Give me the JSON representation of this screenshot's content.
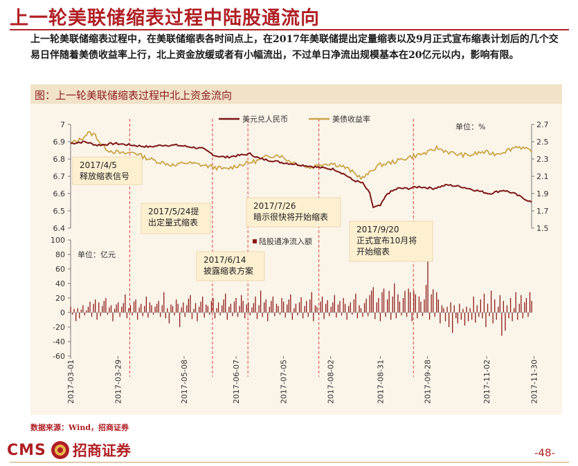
{
  "page": {
    "title": "上一轮美联储缩表过程中陆股通流向",
    "intro": "上一轮美联储缩表过程中，在美联储缩表各时间点上，在2017年美联储提出定量缩表以及9月正式宣布缩表计划后的几个交易日伴随着美债收益率上行，北上资金放缓或者有小幅流出，不过单日净流出规模基本在20亿元以内，影响有限。",
    "chart_title": "图：上一轮美联储缩表过程中北上资金流向",
    "source": "数据来源：Wind，招商证券",
    "logo_cms": "CMS",
    "logo_name": "招商证券",
    "page_number": "-48-"
  },
  "colors": {
    "brand_red": "#b01f24",
    "usdcny": "#7b1416",
    "yield": "#c9a54a",
    "flow": "#8b1a1a",
    "event_line": "#e03a3a",
    "annotation_bg": "#fdf0d0"
  },
  "chart_data": {
    "top_panel": {
      "type": "line",
      "unit_label": "单位：%",
      "left_axis": {
        "min": 6.4,
        "max": 7.0,
        "ticks": [
          "6.4",
          "6.5",
          "6.6",
          "6.7",
          "6.8",
          "6.9",
          "7"
        ]
      },
      "right_axis": {
        "min": 1.5,
        "max": 2.7,
        "ticks": [
          "1.5",
          "1.7",
          "1.9",
          "2.1",
          "2.3",
          "2.5",
          "2.7"
        ]
      },
      "series": [
        {
          "name": "美元兑人民币",
          "axis": "left",
          "keypoints": [
            [
              0,
              6.89
            ],
            [
              8,
              6.9
            ],
            [
              15,
              6.88
            ],
            [
              25,
              6.89
            ],
            [
              35,
              6.88
            ],
            [
              45,
              6.87
            ],
            [
              52,
              6.88
            ],
            [
              60,
              6.88
            ],
            [
              68,
              6.87
            ],
            [
              75,
              6.86
            ],
            [
              82,
              6.82
            ],
            [
              88,
              6.81
            ],
            [
              95,
              6.82
            ],
            [
              102,
              6.83
            ],
            [
              108,
              6.8
            ],
            [
              115,
              6.79
            ],
            [
              120,
              6.78
            ],
            [
              128,
              6.77
            ],
            [
              135,
              6.76
            ],
            [
              142,
              6.75
            ],
            [
              150,
              6.74
            ],
            [
              156,
              6.71
            ],
            [
              160,
              6.68
            ],
            [
              166,
              6.66
            ],
            [
              170,
              6.6
            ],
            [
              172,
              6.52
            ],
            [
              176,
              6.53
            ],
            [
              180,
              6.6
            ],
            [
              186,
              6.63
            ],
            [
              192,
              6.63
            ],
            [
              198,
              6.64
            ],
            [
              206,
              6.63
            ],
            [
              214,
              6.65
            ],
            [
              222,
              6.64
            ],
            [
              230,
              6.62
            ],
            [
              238,
              6.6
            ],
            [
              246,
              6.62
            ],
            [
              252,
              6.6
            ],
            [
              258,
              6.57
            ],
            [
              262,
              6.55
            ]
          ]
        },
        {
          "name": "美债收益率",
          "axis": "right",
          "keypoints": [
            [
              0,
              2.48
            ],
            [
              5,
              2.52
            ],
            [
              10,
              2.6
            ],
            [
              14,
              2.58
            ],
            [
              18,
              2.45
            ],
            [
              22,
              2.4
            ],
            [
              30,
              2.36
            ],
            [
              36,
              2.38
            ],
            [
              42,
              2.32
            ],
            [
              48,
              2.28
            ],
            [
              54,
              2.25
            ],
            [
              60,
              2.22
            ],
            [
              64,
              2.26
            ],
            [
              72,
              2.24
            ],
            [
              80,
              2.21
            ],
            [
              88,
              2.18
            ],
            [
              94,
              2.22
            ],
            [
              100,
              2.25
            ],
            [
              106,
              2.28
            ],
            [
              112,
              2.33
            ],
            [
              118,
              2.35
            ],
            [
              124,
              2.28
            ],
            [
              130,
              2.24
            ],
            [
              136,
              2.2
            ],
            [
              142,
              2.24
            ],
            [
              148,
              2.25
            ],
            [
              154,
              2.22
            ],
            [
              158,
              2.18
            ],
            [
              162,
              2.12
            ],
            [
              166,
              2.08
            ],
            [
              170,
              2.14
            ],
            [
              174,
              2.22
            ],
            [
              180,
              2.25
            ],
            [
              186,
              2.28
            ],
            [
              192,
              2.32
            ],
            [
              198,
              2.35
            ],
            [
              204,
              2.38
            ],
            [
              208,
              2.43
            ],
            [
              212,
              2.4
            ],
            [
              218,
              2.36
            ],
            [
              226,
              2.34
            ],
            [
              234,
              2.38
            ],
            [
              242,
              2.36
            ],
            [
              248,
              2.4
            ],
            [
              254,
              2.45
            ],
            [
              258,
              2.42
            ],
            [
              262,
              2.38
            ]
          ]
        }
      ]
    },
    "bottom_panel": {
      "type": "bar",
      "unit_label": "单位：亿元",
      "series_name": "陆股通净流入额",
      "y_axis": {
        "min": -60,
        "max": 100,
        "ticks": [
          "-60",
          "-40",
          "-20",
          "0",
          "20",
          "40",
          "60",
          "80",
          "100"
        ]
      },
      "values": [
        8,
        -3,
        5,
        -12,
        6,
        -8,
        4,
        10,
        -4,
        3,
        8,
        15,
        -6,
        12,
        18,
        -10,
        14,
        -5,
        9,
        16,
        20,
        -3,
        7,
        10,
        -12,
        5,
        11,
        14,
        -6,
        8,
        13,
        25,
        -8,
        6,
        10,
        -4,
        15,
        18,
        -10,
        7,
        12,
        -5,
        9,
        22,
        -7,
        14,
        10,
        -3,
        8,
        12,
        16,
        -6,
        10,
        28,
        -8,
        6,
        -15,
        11,
        9,
        -4,
        18,
        12,
        -20,
        7,
        14,
        -6,
        10,
        19,
        24,
        -9,
        5,
        13,
        -12,
        8,
        15,
        22,
        -7,
        11,
        9,
        -3,
        16,
        20,
        -8,
        6,
        14,
        -4,
        10,
        18,
        26,
        -10,
        8,
        12,
        -5,
        15,
        20,
        -6,
        9,
        24,
        16,
        -8,
        11,
        14,
        -4,
        7,
        13,
        22,
        -9,
        10,
        30,
        -6,
        14,
        18,
        -12,
        8,
        16,
        22,
        -5,
        12,
        9,
        -3,
        20,
        15,
        -7,
        11,
        18,
        25,
        -10,
        6,
        12,
        -4,
        14,
        21,
        -8,
        9,
        16,
        -6,
        18,
        28,
        -12,
        10,
        8,
        -3,
        15,
        22,
        -9,
        12,
        17,
        -5,
        8,
        14,
        24,
        -7,
        11,
        16,
        -4,
        20,
        12,
        -10,
        9,
        14,
        -3,
        18,
        26,
        -8,
        10,
        6,
        -6,
        13,
        19,
        -5,
        24,
        30,
        35,
        -9,
        14,
        20,
        -12,
        28,
        33,
        -6,
        18,
        30,
        -10,
        22,
        40,
        -8,
        25,
        15,
        -4,
        20,
        30,
        -6,
        33,
        28,
        -12,
        30,
        25,
        -8,
        22,
        15,
        -5,
        18,
        38,
        70,
        -10,
        25,
        32,
        -6,
        28,
        18,
        -15,
        10,
        6,
        -12,
        8,
        -20,
        14,
        -28,
        10,
        -8,
        -15,
        12,
        -10,
        5,
        -18,
        8,
        -12,
        6,
        -10,
        22,
        -14,
        10,
        -6,
        18,
        -8,
        26,
        -20,
        12,
        -5,
        30,
        -15,
        18,
        -10,
        8,
        24,
        -32,
        16,
        -25,
        10,
        -8,
        20,
        -12,
        6,
        28,
        -10,
        12,
        24,
        -8,
        14,
        20,
        -6,
        28,
        16
      ]
    },
    "x_axis": {
      "type": "date",
      "start": "2017-03-01",
      "tick_labels": [
        "2017-03-01",
        "2017-03-29",
        "2017-05-08",
        "2017-06-07",
        "2017-07-05",
        "2017-08-02",
        "2017-08-31",
        "2017-09-28",
        "2017-11-02",
        "2017-11-30"
      ]
    },
    "events": [
      {
        "date": "2017-04-05",
        "text": "2017/4/5\n释放缩表信号"
      },
      {
        "date": "2017-05-24",
        "text": "2017/5/24提\n出定量式缩表"
      },
      {
        "date": "2017-06-14",
        "text": "2017/6/14\n披露缩表方案"
      },
      {
        "date": "2017-07-26",
        "text": "2017/7/26\n暗示很快将开始缩表"
      },
      {
        "date": "2017-09-20",
        "text": "2017/9/20\n正式宣布10月将\n开始缩表"
      }
    ]
  }
}
